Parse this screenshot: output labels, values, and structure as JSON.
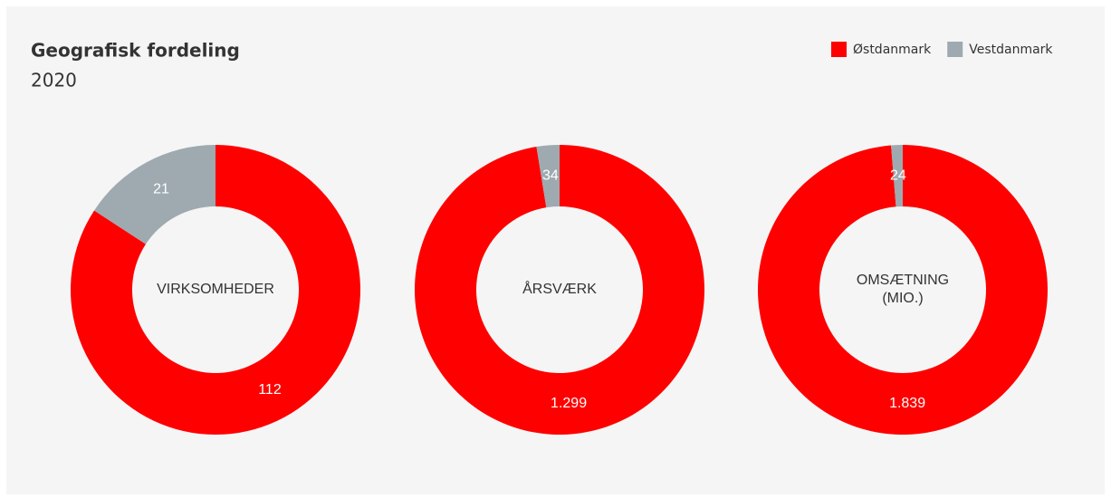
{
  "header": {
    "title": "Geografisk fordeling",
    "subtitle": "2020"
  },
  "chart_data": [
    {
      "type": "donut",
      "center_label": [
        "VIRKSOMHEDER"
      ],
      "categories": [
        "Østdanmark",
        "Vestdanmark"
      ],
      "values": [
        112,
        21
      ],
      "colors": [
        "#ff0000",
        "#9eaab0"
      ],
      "legend": "top-right"
    },
    {
      "type": "donut",
      "center_label": [
        "ÅRSVÆRK"
      ],
      "categories": [
        "Østdanmark",
        "Vestdanmark"
      ],
      "values": [
        1299,
        34
      ],
      "value_labels": [
        "1.299",
        "34"
      ],
      "colors": [
        "#ff0000",
        "#9eaab0"
      ]
    },
    {
      "type": "donut",
      "center_label": [
        "OMSÆTNING",
        "(MIO.)"
      ],
      "categories": [
        "Østdanmark",
        "Vestdanmark"
      ],
      "values": [
        1839,
        24
      ],
      "value_labels": [
        "1.839",
        "24"
      ],
      "colors": [
        "#ff0000",
        "#9eaab0"
      ]
    }
  ]
}
